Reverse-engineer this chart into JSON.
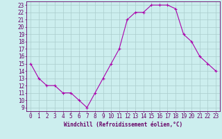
{
  "hours": [
    0,
    1,
    2,
    3,
    4,
    5,
    6,
    7,
    8,
    9,
    10,
    11,
    12,
    13,
    14,
    15,
    16,
    17,
    18,
    19,
    20,
    21,
    22,
    23
  ],
  "values": [
    15,
    13,
    12,
    12,
    11,
    11,
    10,
    9,
    11,
    13,
    15,
    17,
    21,
    22,
    22,
    23,
    23,
    23,
    22.5,
    19,
    18,
    16,
    15,
    14
  ],
  "line_color": "#aa00aa",
  "marker": "+",
  "marker_size": 3,
  "bg_color": "#cceeee",
  "grid_color": "#aacccc",
  "xlabel": "Windchill (Refroidissement éolien,°C)",
  "xlim": [
    -0.5,
    23.5
  ],
  "ylim": [
    8.5,
    23.5
  ],
  "yticks": [
    9,
    10,
    11,
    12,
    13,
    14,
    15,
    16,
    17,
    18,
    19,
    20,
    21,
    22,
    23
  ],
  "xticks": [
    0,
    1,
    2,
    3,
    4,
    5,
    6,
    7,
    8,
    9,
    10,
    11,
    12,
    13,
    14,
    15,
    16,
    17,
    18,
    19,
    20,
    21,
    22,
    23
  ],
  "title_color": "#660066",
  "label_fontsize": 5.5,
  "tick_fontsize": 5.5
}
